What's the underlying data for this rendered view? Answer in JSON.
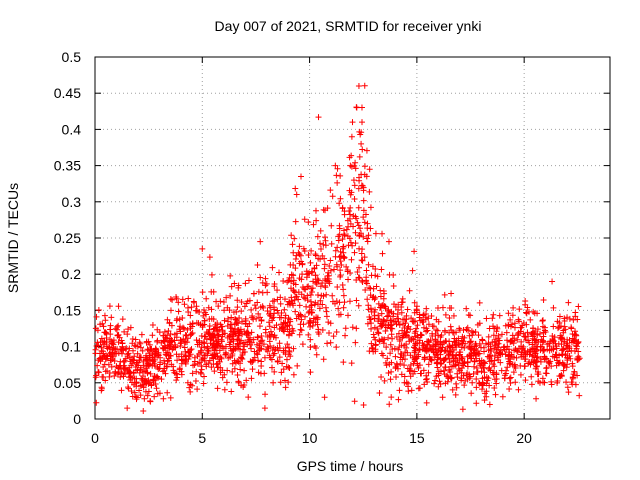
{
  "chart_data": {
    "type": "scatter",
    "title": "Day 007 of 2021, SRMTID for receiver ynki",
    "xlabel": "GPS time / hours",
    "ylabel": "SRMTID / TECUs",
    "xlim": [
      0,
      24
    ],
    "ylim": [
      0,
      0.5
    ],
    "xticks": [
      0,
      5,
      10,
      15,
      20
    ],
    "xtick_labels": [
      "0",
      "5",
      "10",
      "15",
      "20"
    ],
    "yticks": [
      0,
      0.05,
      0.1,
      0.15,
      0.2,
      0.25,
      0.3,
      0.35,
      0.4,
      0.45,
      0.5
    ],
    "ytick_labels": [
      "0",
      "0.05",
      "0.1",
      "0.15",
      "0.2",
      "0.25",
      "0.3",
      "0.35",
      "0.4",
      "0.45",
      "0.5"
    ],
    "grid": true,
    "marker": "+",
    "marker_color": "#ff0000",
    "series_name": "SRMTID",
    "trend": {
      "x": [
        0,
        1,
        2,
        3,
        4,
        5,
        6,
        7,
        8,
        9,
        9.5,
        10,
        11,
        12,
        12.5,
        13,
        14,
        15,
        16,
        17,
        18,
        19,
        20,
        21,
        22,
        22.6
      ],
      "y": [
        0.085,
        0.09,
        0.065,
        0.08,
        0.11,
        0.11,
        0.1,
        0.11,
        0.12,
        0.12,
        0.18,
        0.16,
        0.2,
        0.25,
        0.28,
        0.14,
        0.11,
        0.1,
        0.09,
        0.085,
        0.08,
        0.09,
        0.1,
        0.09,
        0.09,
        0.1
      ]
    },
    "note_points": [
      {
        "x": 12.3,
        "y": 0.46
      },
      {
        "x": 12.2,
        "y": 0.43
      },
      {
        "x": 12.0,
        "y": 0.41
      },
      {
        "x": 12.4,
        "y": 0.38
      },
      {
        "x": 11.9,
        "y": 0.35
      },
      {
        "x": 9.6,
        "y": 0.335
      },
      {
        "x": 9.4,
        "y": 0.31
      },
      {
        "x": 11.2,
        "y": 0.35
      },
      {
        "x": 12.8,
        "y": 0.345
      },
      {
        "x": 5.0,
        "y": 0.235
      },
      {
        "x": 7.7,
        "y": 0.245
      },
      {
        "x": 13.7,
        "y": 0.245
      },
      {
        "x": 14.8,
        "y": 0.205
      },
      {
        "x": 21.3,
        "y": 0.19
      },
      {
        "x": 1.5,
        "y": 0.015
      },
      {
        "x": 10.7,
        "y": 0.03
      },
      {
        "x": 16.2,
        "y": 0.03
      },
      {
        "x": 18.4,
        "y": 0.02
      },
      {
        "x": 8.3,
        "y": 0.05
      },
      {
        "x": 2.3,
        "y": 0.028
      }
    ]
  }
}
